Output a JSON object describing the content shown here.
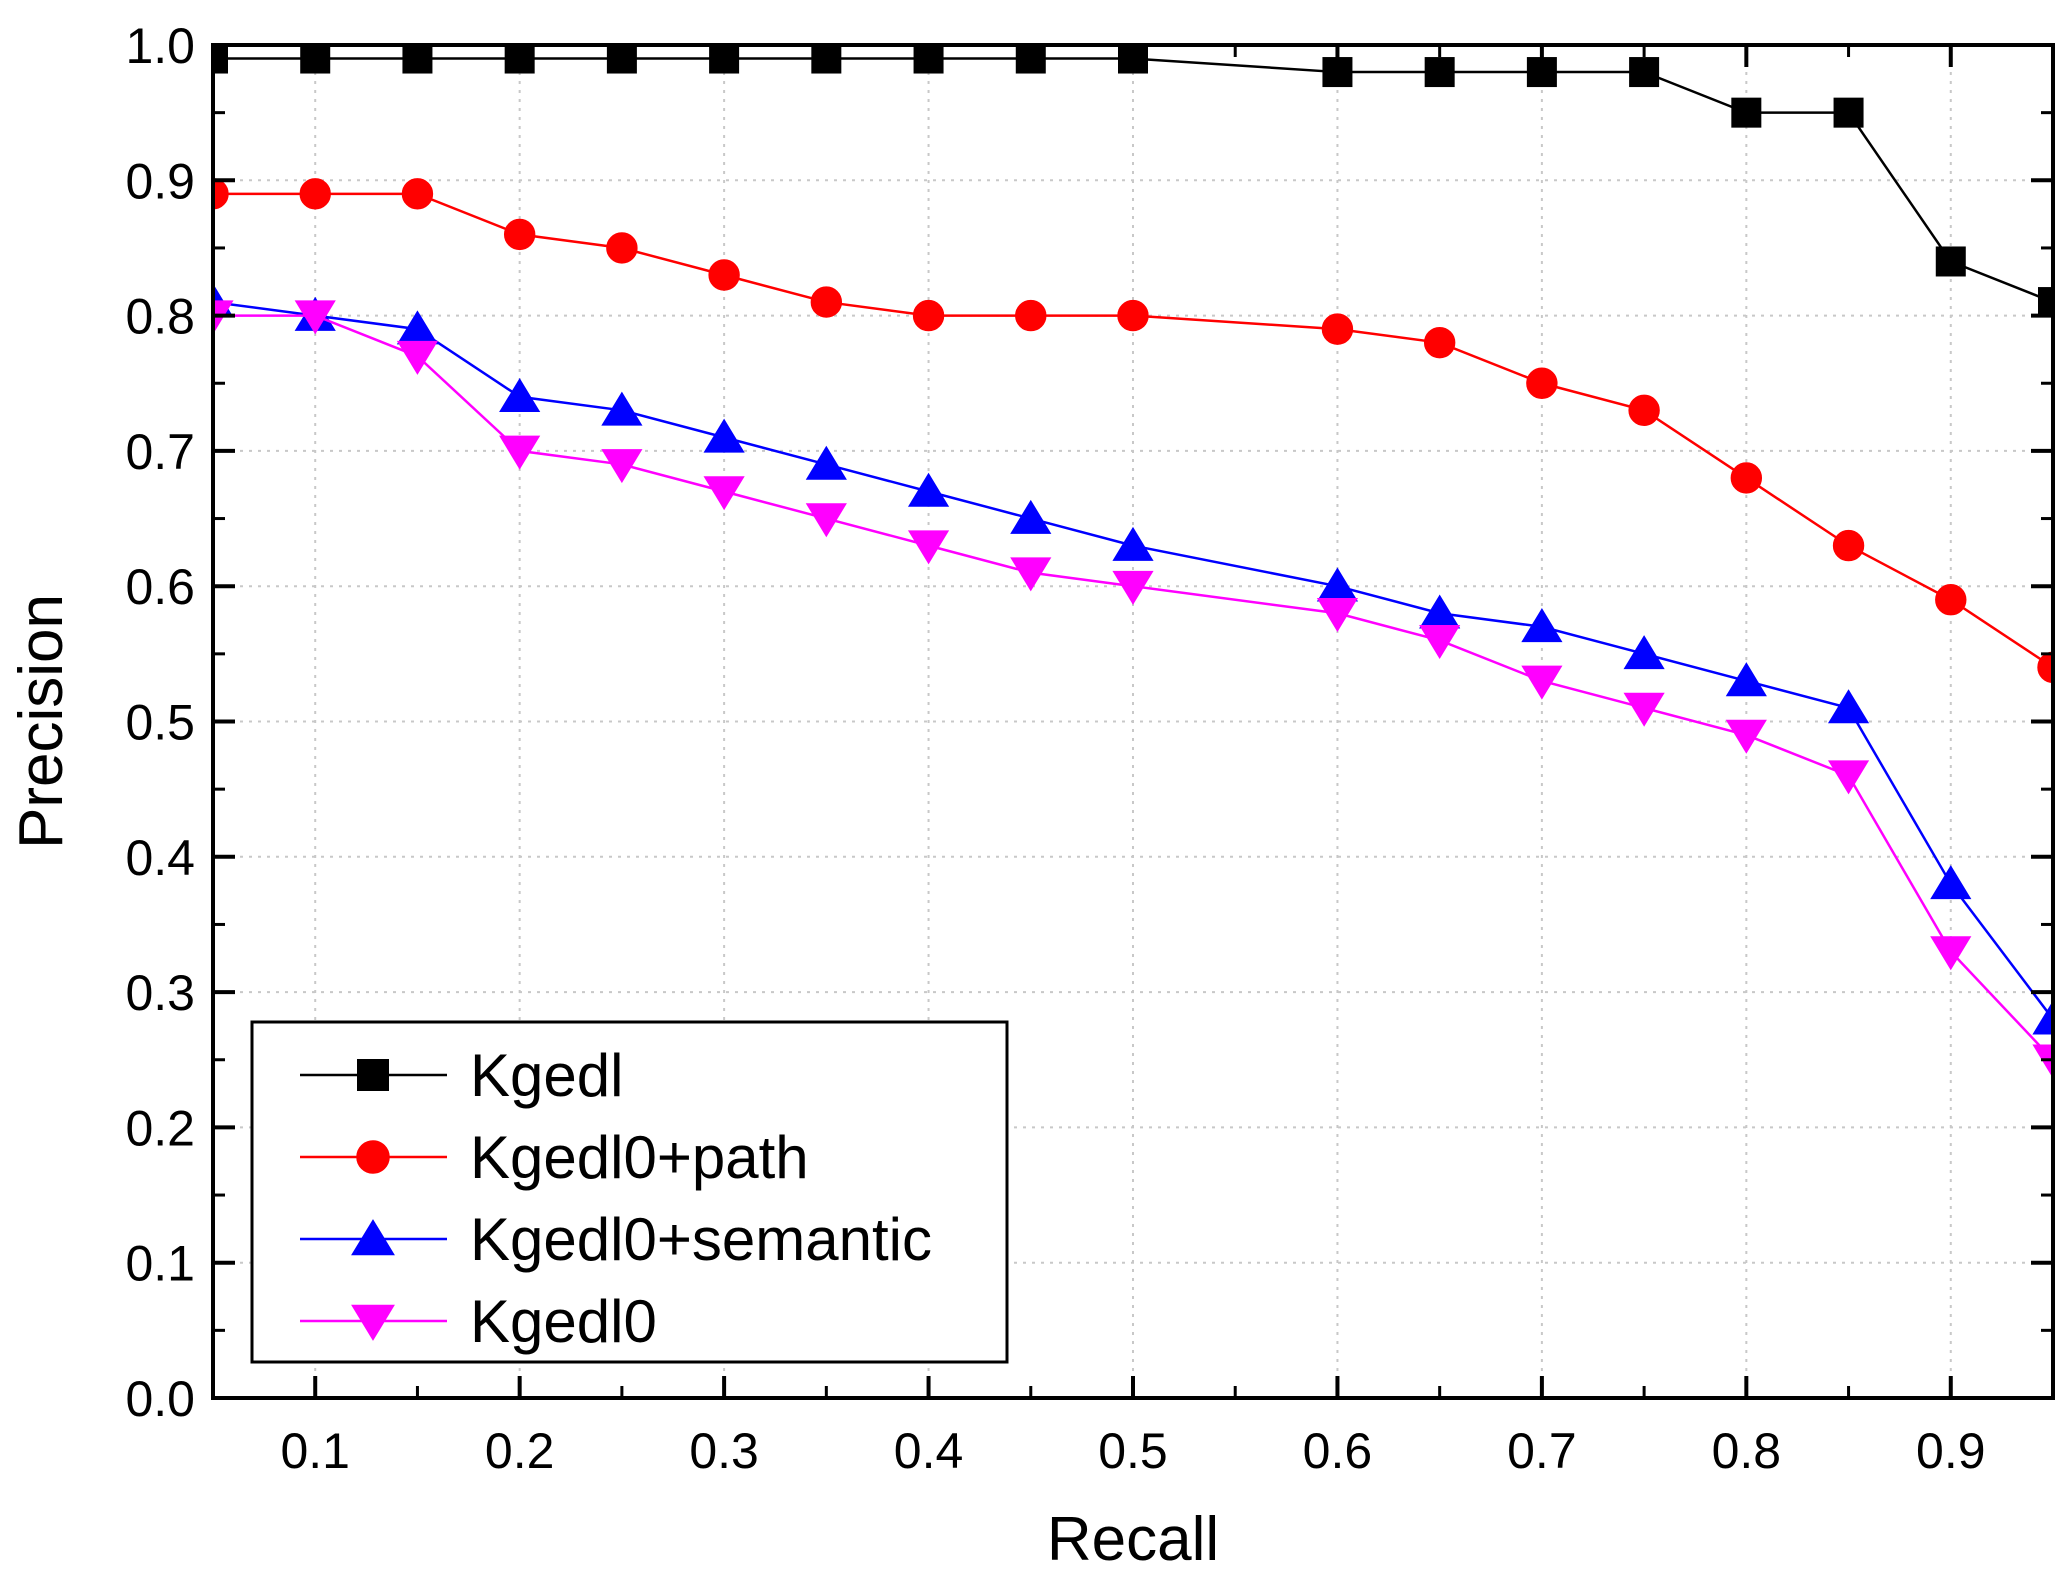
{
  "chart_data": {
    "type": "line",
    "title": "",
    "xlabel": "Recall",
    "ylabel": "Precision",
    "xlim": [
      0.05,
      0.95
    ],
    "ylim": [
      0.0,
      1.0
    ],
    "grid": true,
    "legend_position": "bottom-left",
    "x_ticks": [
      0.1,
      0.2,
      0.3,
      0.4,
      0.5,
      0.6,
      0.7,
      0.8,
      0.9
    ],
    "x_tick_labels": [
      "0.1",
      "0.2",
      "0.3",
      "0.4",
      "0.5",
      "0.6",
      "0.7",
      "0.8",
      "0.9"
    ],
    "y_ticks": [
      0.0,
      0.1,
      0.2,
      0.3,
      0.4,
      0.5,
      0.6,
      0.7,
      0.8,
      0.9,
      1.0
    ],
    "y_tick_labels": [
      "0.0",
      "0.1",
      "0.2",
      "0.3",
      "0.4",
      "0.5",
      "0.6",
      "0.7",
      "0.8",
      "0.9",
      "1.0"
    ],
    "series": [
      {
        "name": "Kgedl",
        "color": "#000000",
        "marker": "square",
        "x": [
          0.05,
          0.1,
          0.15,
          0.2,
          0.25,
          0.3,
          0.35,
          0.4,
          0.45,
          0.5,
          0.6,
          0.65,
          0.7,
          0.75,
          0.8,
          0.85,
          0.9,
          0.95
        ],
        "values": [
          0.99,
          0.99,
          0.99,
          0.99,
          0.99,
          0.99,
          0.99,
          0.99,
          0.99,
          0.99,
          0.98,
          0.98,
          0.98,
          0.98,
          0.95,
          0.95,
          0.84,
          0.81
        ]
      },
      {
        "name": "Kgedl0+path",
        "color": "#ff0000",
        "marker": "circle",
        "x": [
          0.05,
          0.1,
          0.15,
          0.2,
          0.25,
          0.3,
          0.35,
          0.4,
          0.45,
          0.5,
          0.6,
          0.65,
          0.7,
          0.75,
          0.8,
          0.85,
          0.9,
          0.95
        ],
        "values": [
          0.89,
          0.89,
          0.89,
          0.86,
          0.85,
          0.83,
          0.81,
          0.8,
          0.8,
          0.8,
          0.79,
          0.78,
          0.75,
          0.73,
          0.68,
          0.63,
          0.59,
          0.54
        ]
      },
      {
        "name": "Kgedl0+semantic",
        "color": "#0000ff",
        "marker": "triangle-up",
        "x": [
          0.05,
          0.1,
          0.15,
          0.2,
          0.25,
          0.3,
          0.35,
          0.4,
          0.45,
          0.5,
          0.6,
          0.65,
          0.7,
          0.75,
          0.8,
          0.85,
          0.9,
          0.95
        ],
        "values": [
          0.81,
          0.8,
          0.79,
          0.74,
          0.73,
          0.71,
          0.69,
          0.67,
          0.65,
          0.63,
          0.6,
          0.58,
          0.57,
          0.55,
          0.53,
          0.51,
          0.38,
          0.28
        ]
      },
      {
        "name": "Kgedl0",
        "color": "#ff00ff",
        "marker": "triangle-down",
        "x": [
          0.05,
          0.1,
          0.15,
          0.2,
          0.25,
          0.3,
          0.35,
          0.4,
          0.45,
          0.5,
          0.6,
          0.65,
          0.7,
          0.75,
          0.8,
          0.85,
          0.9,
          0.95
        ],
        "values": [
          0.8,
          0.8,
          0.77,
          0.7,
          0.69,
          0.67,
          0.65,
          0.63,
          0.61,
          0.6,
          0.58,
          0.56,
          0.53,
          0.51,
          0.49,
          0.46,
          0.33,
          0.25
        ]
      }
    ]
  }
}
